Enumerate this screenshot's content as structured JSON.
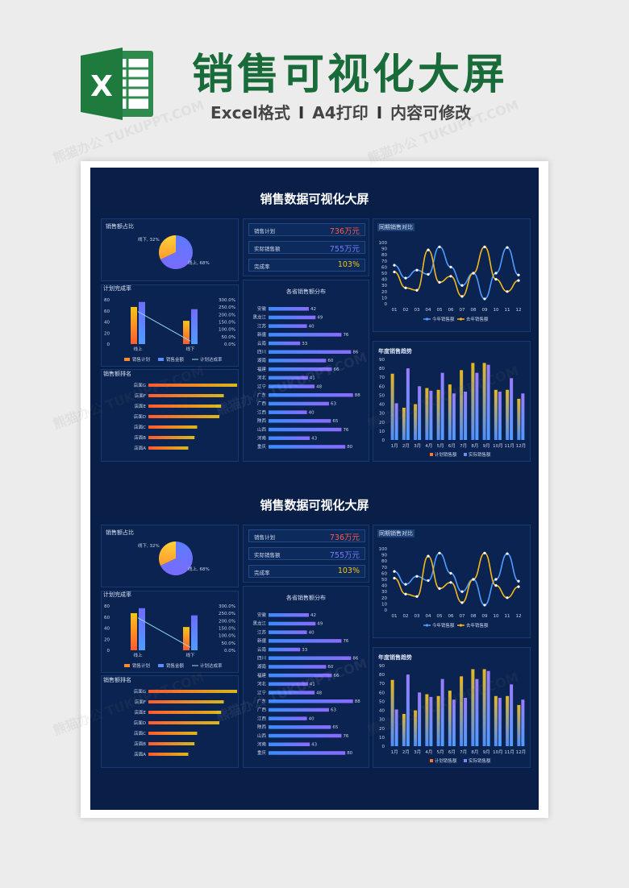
{
  "header": {
    "title": "销售可视化大屏",
    "subtitle_parts": [
      "Excel格式",
      "A4打印",
      "内容可修改"
    ],
    "separator": "I",
    "icon_letter": "X"
  },
  "watermark": "熊猫办公 TUKUPPT.COM",
  "colors": {
    "accent_green": "#1a6b3a",
    "dash_bg": "#0a1f47",
    "kpi_plan": "#ff5a4d",
    "kpi_actual": "#7b7dff",
    "kpi_rate": "#f5c518"
  },
  "dashboard": {
    "title": "销售数据可视化大屏",
    "pie": {
      "label": "销售额占比",
      "slices": [
        {
          "name": "线上",
          "value": 68,
          "text": "线上, 68%"
        },
        {
          "name": "线下",
          "value": 32,
          "text": "线下, 32%"
        }
      ]
    },
    "kpis": [
      {
        "label": "销售计划",
        "value": "736万元",
        "color": "#ff5a4d"
      },
      {
        "label": "实际销售额",
        "value": "755万元",
        "color": "#7b7dff"
      },
      {
        "label": "完成率",
        "value": "103%",
        "color": "#f5c518"
      }
    ],
    "line_chart": {
      "label": "同期销售对比",
      "x": [
        "01",
        "02",
        "03",
        "04",
        "05",
        "06",
        "07",
        "08",
        "09",
        "10",
        "11",
        "12"
      ],
      "y_ticks": [
        "100",
        "90",
        "80",
        "70",
        "60",
        "50",
        "40",
        "30",
        "20",
        "10",
        "0"
      ],
      "series": [
        {
          "name": "今年销售额",
          "color": "#4f9cff",
          "values": [
            63,
            42,
            55,
            48,
            93,
            60,
            30,
            50,
            8,
            50,
            92,
            47
          ]
        },
        {
          "name": "去年销售额",
          "color": "#f5b81c",
          "values": [
            52,
            26,
            22,
            88,
            35,
            45,
            12,
            50,
            93,
            40,
            20,
            38
          ]
        }
      ]
    },
    "plan_chart": {
      "label": "计划完成率",
      "categories": [
        "线上",
        "线下"
      ],
      "left_ticks": [
        "80",
        "60",
        "40",
        "20",
        "0"
      ],
      "right_ticks": [
        "300.0%",
        "250.0%",
        "200.0%",
        "150.0%",
        "100.0%",
        "50.0%",
        "0.0%"
      ],
      "plan": [
        67,
        42
      ],
      "actual": [
        76,
        63
      ],
      "rate_pct": [
        220,
        20
      ],
      "legend": [
        "销售计划",
        "销售金额",
        "计划达成率"
      ]
    },
    "province_chart": {
      "label": "各省销售额分布",
      "items": [
        {
          "name": "安徽",
          "value": 42
        },
        {
          "name": "黑龙江",
          "value": 49
        },
        {
          "name": "江苏",
          "value": 40
        },
        {
          "name": "新疆",
          "value": 76
        },
        {
          "name": "云南",
          "value": 33
        },
        {
          "name": "四川",
          "value": 86
        },
        {
          "name": "湖南",
          "value": 60
        },
        {
          "name": "福建",
          "value": 66
        },
        {
          "name": "河北",
          "value": 41
        },
        {
          "name": "辽宁",
          "value": 48
        },
        {
          "name": "广东",
          "value": 88
        },
        {
          "name": "广西",
          "value": 63
        },
        {
          "name": "江西",
          "value": 40
        },
        {
          "name": "陕西",
          "value": 65
        },
        {
          "name": "山西",
          "value": 76
        },
        {
          "name": "河南",
          "value": 43
        },
        {
          "name": "重庆",
          "value": 80
        }
      ]
    },
    "ranking_chart": {
      "label": "销售额排名",
      "items": [
        {
          "name": "店面G",
          "value": 100
        },
        {
          "name": "店面F",
          "value": 85
        },
        {
          "name": "店面E",
          "value": 82
        },
        {
          "name": "店面D",
          "value": 80
        },
        {
          "name": "店面C",
          "value": 55
        },
        {
          "name": "店面B",
          "value": 52
        },
        {
          "name": "店面A",
          "value": 45
        }
      ]
    },
    "annual_chart": {
      "label": "年度销售趋势",
      "categories": [
        "1月",
        "2月",
        "3月",
        "4月",
        "5月",
        "6月",
        "7月",
        "8月",
        "9月",
        "10月",
        "11月",
        "12月"
      ],
      "y_ticks": [
        "90",
        "80",
        "70",
        "60",
        "50",
        "40",
        "30",
        "20",
        "10",
        "0"
      ],
      "series": [
        {
          "name": "计划销售额",
          "color": "#e6b820",
          "values": [
            74,
            36,
            40,
            58,
            56,
            62,
            78,
            86,
            86,
            56,
            56,
            46
          ]
        },
        {
          "name": "实际销售额",
          "color": "#8a7cff",
          "values": [
            41,
            80,
            60,
            55,
            75,
            52,
            54,
            75,
            84,
            54,
            69,
            52
          ]
        }
      ]
    }
  }
}
